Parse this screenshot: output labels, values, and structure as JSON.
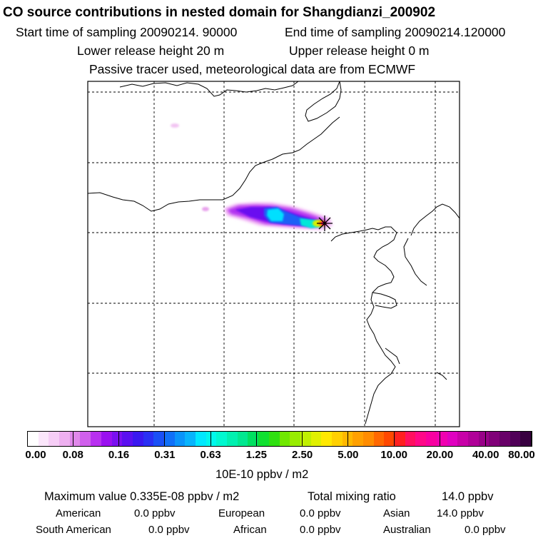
{
  "header": {
    "title": "CO  source contributions in nested domain for Shangdianzi_200902",
    "start_time": "Start time of sampling 20090214. 90000",
    "end_time": "End time of sampling 20090214.120000",
    "lower_height": "Lower release height   20 m",
    "upper_height": "Upper release height    0 m",
    "tracer_note": "Passive tracer used, meteorological data are from ECMWF"
  },
  "colorbar": {
    "unit": "10E-10 ppbv / m2",
    "tick_labels": [
      "0.00",
      "0.08",
      "0.16",
      "0.31",
      "0.63",
      "1.25",
      "2.50",
      "5.00",
      "10.00",
      "20.00",
      "40.00",
      "80.00"
    ],
    "colors": [
      "#ffffff",
      "#fbe6fb",
      "#f6cdf6",
      "#eeb0f0",
      "#e088ea",
      "#d060ec",
      "#b830f0",
      "#9a10f0",
      "#7a10f0",
      "#5a10f0",
      "#3a18f0",
      "#2a30f4",
      "#1a50f6",
      "#1070f8",
      "#0a94fa",
      "#08b4fc",
      "#00e8ff",
      "#00f8ec",
      "#00f8d0",
      "#00f0b0",
      "#00e890",
      "#00e060",
      "#10e030",
      "#30e010",
      "#70e800",
      "#98ec00",
      "#c0f000",
      "#e0f000",
      "#ffe800",
      "#ffd000",
      "#ffb800",
      "#ffa000",
      "#ff8c00",
      "#ff6800",
      "#ff4800",
      "#ff2020",
      "#ff1060",
      "#ff0888",
      "#f800a0",
      "#f000b0",
      "#e000c0",
      "#c800a8",
      "#b00098",
      "#980088",
      "#800078",
      "#680068",
      "#500058",
      "#380040"
    ]
  },
  "summary": {
    "max_value": "Maximum value  0.335E-08 ppbv / m2",
    "total_mixing": "Total mixing ratio",
    "total_mixing_value": "14.0 ppbv"
  },
  "contributions": {
    "american_label": "American",
    "american_value": "0.0 ppbv",
    "european_label": "European",
    "european_value": "0.0 ppbv",
    "asian_label": "Asian",
    "asian_value": "14.0 ppbv",
    "south_american_label": "South American",
    "south_american_value": "0.0 ppbv",
    "african_label": "African",
    "african_value": "0.0 ppbv",
    "australian_label": "Australian",
    "australian_value": "0.0 ppbv"
  }
}
